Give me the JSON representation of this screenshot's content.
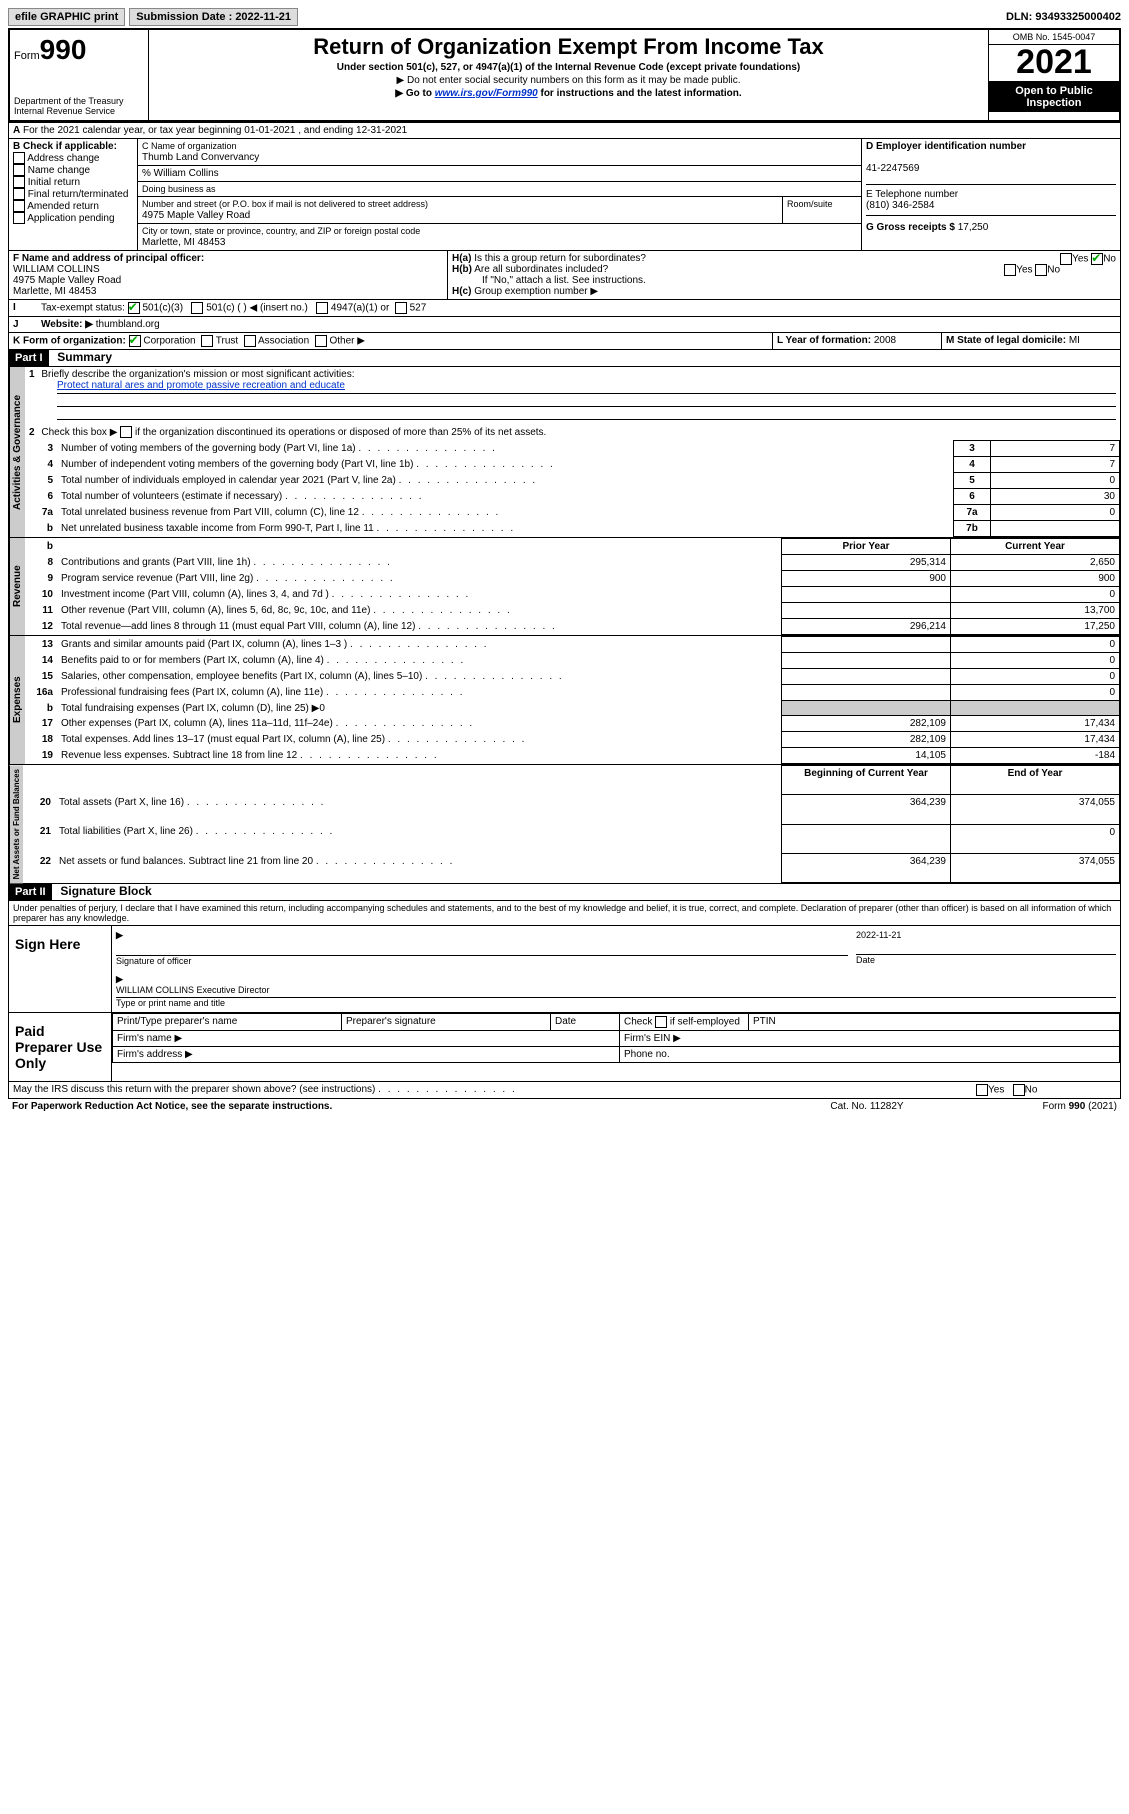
{
  "top": {
    "efile": "efile GRAPHIC print",
    "submission_label": "Submission Date : 2022-11-21",
    "dln": "DLN: 93493325000402"
  },
  "header": {
    "form_prefix": "Form",
    "form_no": "990",
    "dept": "Department of the Treasury",
    "irs": "Internal Revenue Service",
    "title": "Return of Organization Exempt From Income Tax",
    "sub": "Under section 501(c), 527, or 4947(a)(1) of the Internal Revenue Code (except private foundations)",
    "note1": "▶ Do not enter social security numbers on this form as it may be made public.",
    "note2_pre": "▶ Go to ",
    "note2_link": "www.irs.gov/Form990",
    "note2_post": " for instructions and the latest information.",
    "omb": "OMB No. 1545-0047",
    "year": "2021",
    "open": "Open to Public Inspection"
  },
  "A": {
    "line": "For the 2021 calendar year, or tax year beginning 01-01-2021   , and ending 12-31-2021"
  },
  "B": {
    "label": "B Check if applicable:",
    "opts": [
      "Address change",
      "Name change",
      "Initial return",
      "Final return/terminated",
      "Amended return",
      "Application pending"
    ]
  },
  "C": {
    "name_label": "C Name of organization",
    "name": "Thumb Land Convervancy",
    "care_of": "% William Collins",
    "dba_label": "Doing business as",
    "street_label": "Number and street (or P.O. box if mail is not delivered to street address)",
    "room_label": "Room/suite",
    "street": "4975 Maple Valley Road",
    "city_label": "City or town, state or province, country, and ZIP or foreign postal code",
    "city": "Marlette, MI  48453"
  },
  "D": {
    "label": "D Employer identification number",
    "ein": "41-2247569"
  },
  "E": {
    "label": "E Telephone number",
    "phone": "(810) 346-2584"
  },
  "G": {
    "label": "G Gross receipts $",
    "value": "17,250"
  },
  "F": {
    "label": "F Name and address of principal officer:",
    "name": "WILLIAM COLLINS",
    "addr1": "4975 Maple Valley Road",
    "addr2": "Marlette, MI  48453"
  },
  "H": {
    "a": "Is this a group return for subordinates?",
    "b": "Are all subordinates included?",
    "b_note": "If \"No,\" attach a list. See instructions.",
    "c": "Group exemption number ▶",
    "yes": "Yes",
    "no": "No"
  },
  "I": {
    "label": "Tax-exempt status:",
    "opts": [
      "501(c)(3)",
      "501(c) (  ) ◀ (insert no.)",
      "4947(a)(1) or",
      "527"
    ]
  },
  "J": {
    "label": "Website: ▶",
    "site": "thumbland.org"
  },
  "K": {
    "label": "K Form of organization:",
    "opts": [
      "Corporation",
      "Trust",
      "Association",
      "Other ▶"
    ]
  },
  "L": {
    "label": "L Year of formation:",
    "val": "2008"
  },
  "M": {
    "label": "M State of legal domicile:",
    "val": "MI"
  },
  "part1": {
    "header": "Part I",
    "title": "Summary",
    "mission_label": "Briefly describe the organization's mission or most significant activities:",
    "mission": "Protect natural ares and promote passive recreation and educate",
    "line2": "Check this box ▶       if the organization discontinued its operations or disposed of more than 25% of its net assets.",
    "lines_gov": [
      {
        "n": "3",
        "label": "Number of voting members of the governing body (Part VI, line 1a)",
        "box": "3",
        "val": "7"
      },
      {
        "n": "4",
        "label": "Number of independent voting members of the governing body (Part VI, line 1b)",
        "box": "4",
        "val": "7"
      },
      {
        "n": "5",
        "label": "Total number of individuals employed in calendar year 2021 (Part V, line 2a)",
        "box": "5",
        "val": "0"
      },
      {
        "n": "6",
        "label": "Total number of volunteers (estimate if necessary)",
        "box": "6",
        "val": "30"
      },
      {
        "n": "7a",
        "label": "Total unrelated business revenue from Part VIII, column (C), line 12",
        "box": "7a",
        "val": "0"
      },
      {
        "n": "b",
        "label": "Net unrelated business taxable income from Form 990-T, Part I, line 11",
        "box": "7b",
        "val": ""
      }
    ],
    "col_prior": "Prior Year",
    "col_current": "Current Year",
    "col_begin": "Beginning of Current Year",
    "col_end": "End of Year",
    "revenue": [
      {
        "n": "8",
        "label": "Contributions and grants (Part VIII, line 1h)",
        "p": "295,314",
        "c": "2,650"
      },
      {
        "n": "9",
        "label": "Program service revenue (Part VIII, line 2g)",
        "p": "900",
        "c": "900"
      },
      {
        "n": "10",
        "label": "Investment income (Part VIII, column (A), lines 3, 4, and 7d )",
        "p": "",
        "c": "0"
      },
      {
        "n": "11",
        "label": "Other revenue (Part VIII, column (A), lines 5, 6d, 8c, 9c, 10c, and 11e)",
        "p": "",
        "c": "13,700"
      },
      {
        "n": "12",
        "label": "Total revenue—add lines 8 through 11 (must equal Part VIII, column (A), line 12)",
        "p": "296,214",
        "c": "17,250"
      }
    ],
    "expenses": [
      {
        "n": "13",
        "label": "Grants and similar amounts paid (Part IX, column (A), lines 1–3 )",
        "p": "",
        "c": "0"
      },
      {
        "n": "14",
        "label": "Benefits paid to or for members (Part IX, column (A), line 4)",
        "p": "",
        "c": "0"
      },
      {
        "n": "15",
        "label": "Salaries, other compensation, employee benefits (Part IX, column (A), lines 5–10)",
        "p": "",
        "c": "0"
      },
      {
        "n": "16a",
        "label": "Professional fundraising fees (Part IX, column (A), line 11e)",
        "p": "",
        "c": "0"
      },
      {
        "n": "b",
        "label": "Total fundraising expenses (Part IX, column (D), line 25) ▶0",
        "p": "SHADE",
        "c": "SHADE"
      },
      {
        "n": "17",
        "label": "Other expenses (Part IX, column (A), lines 11a–11d, 11f–24e)",
        "p": "282,109",
        "c": "17,434"
      },
      {
        "n": "18",
        "label": "Total expenses. Add lines 13–17 (must equal Part IX, column (A), line 25)",
        "p": "282,109",
        "c": "17,434"
      },
      {
        "n": "19",
        "label": "Revenue less expenses. Subtract line 18 from line 12",
        "p": "14,105",
        "c": "-184"
      }
    ],
    "net": [
      {
        "n": "20",
        "label": "Total assets (Part X, line 16)",
        "p": "364,239",
        "c": "374,055"
      },
      {
        "n": "21",
        "label": "Total liabilities (Part X, line 26)",
        "p": "",
        "c": "0"
      },
      {
        "n": "22",
        "label": "Net assets or fund balances. Subtract line 21 from line 20",
        "p": "364,239",
        "c": "374,055"
      }
    ],
    "tabs": {
      "gov": "Activities & Governance",
      "rev": "Revenue",
      "exp": "Expenses",
      "net": "Net Assets or Fund Balances"
    }
  },
  "part2": {
    "header": "Part II",
    "title": "Signature Block",
    "decl": "Under penalties of perjury, I declare that I have examined this return, including accompanying schedules and statements, and to the best of my knowledge and belief, it is true, correct, and complete. Declaration of preparer (other than officer) is based on all information of which preparer has any knowledge.",
    "sign_here": "Sign Here",
    "sig_officer": "Signature of officer",
    "sig_date": "2022-11-21",
    "date_label": "Date",
    "officer_name": "WILLIAM COLLINS  Executive Director",
    "type_name": "Type or print name and title",
    "paid": "Paid Preparer Use Only",
    "prep_name": "Print/Type preparer's name",
    "prep_sig": "Preparer's signature",
    "check_self": "Check        if self-employed",
    "ptin": "PTIN",
    "firm_name": "Firm's name   ▶",
    "firm_ein": "Firm's EIN ▶",
    "firm_addr": "Firm's address ▶",
    "phone": "Phone no.",
    "discuss": "May the IRS discuss this return with the preparer shown above? (see instructions)"
  },
  "footer": {
    "pra": "For Paperwork Reduction Act Notice, see the separate instructions.",
    "cat": "Cat. No. 11282Y",
    "form": "Form 990 (2021)"
  }
}
